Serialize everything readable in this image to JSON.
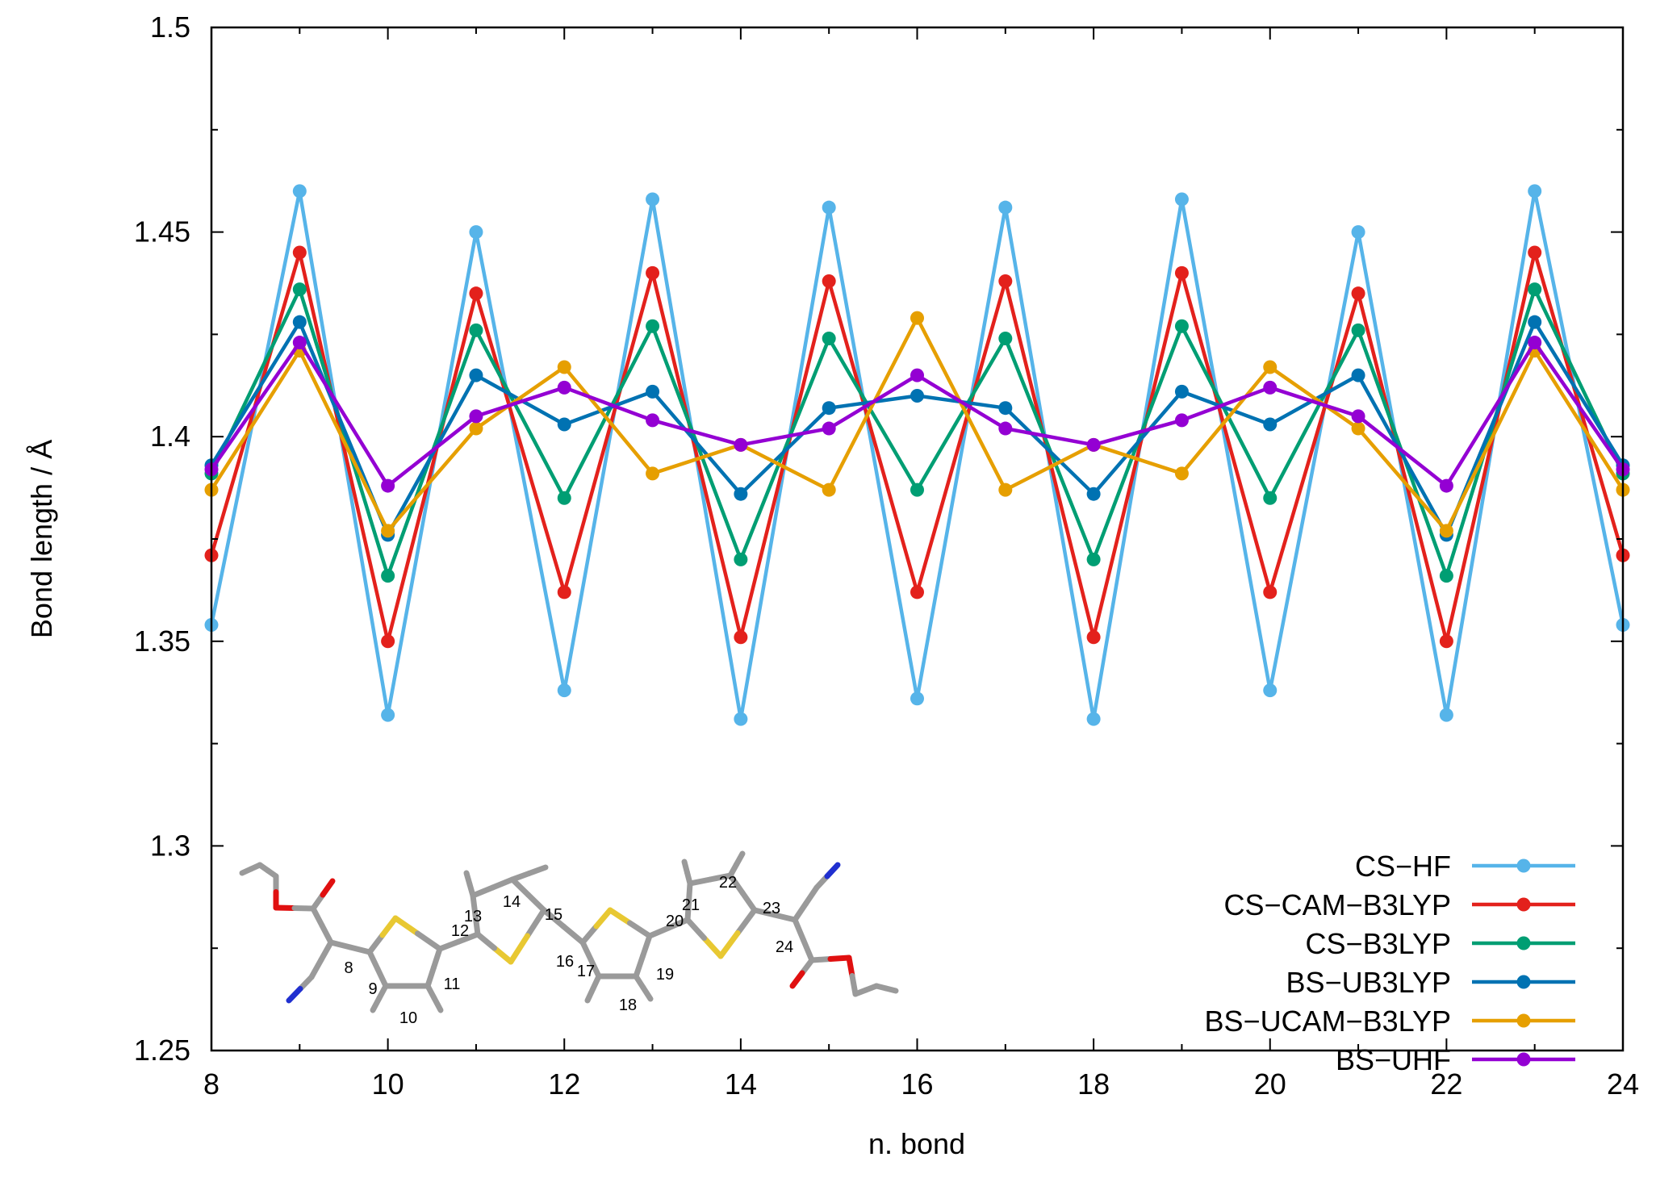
{
  "chart_data": {
    "type": "line",
    "title": "",
    "xlabel": "n. bond",
    "ylabel": "Bond length / Å",
    "xlim": [
      8,
      24
    ],
    "ylim": [
      1.25,
      1.5
    ],
    "xticks": [
      8,
      10,
      12,
      14,
      16,
      18,
      20,
      22,
      24
    ],
    "xtick_labels": [
      "8",
      "10",
      "12",
      "14",
      "16",
      "18",
      "20",
      "22",
      "24"
    ],
    "yticks": [
      1.25,
      1.3,
      1.35,
      1.4,
      1.45,
      1.5
    ],
    "ytick_labels": [
      "1.25",
      "1.3",
      "1.35",
      "1.4",
      "1.45",
      "1.5"
    ],
    "grid": false,
    "legend_position": "bottom-right",
    "x": [
      8,
      9,
      10,
      11,
      12,
      13,
      14,
      15,
      16,
      17,
      18,
      19,
      20,
      21,
      22,
      23,
      24
    ],
    "series": [
      {
        "name": "CS−HF",
        "color": "#56b4e9",
        "values": [
          1.354,
          1.46,
          1.332,
          1.45,
          1.338,
          1.458,
          1.331,
          1.456,
          1.336,
          1.456,
          1.331,
          1.458,
          1.338,
          1.45,
          1.332,
          1.46,
          1.354
        ]
      },
      {
        "name": "CS−CAM−B3LYP",
        "color": "#e3211c",
        "values": [
          1.371,
          1.445,
          1.35,
          1.435,
          1.362,
          1.44,
          1.351,
          1.438,
          1.362,
          1.438,
          1.351,
          1.44,
          1.362,
          1.435,
          1.35,
          1.445,
          1.371
        ]
      },
      {
        "name": "CS−B3LYP",
        "color": "#009e73",
        "values": [
          1.391,
          1.436,
          1.366,
          1.426,
          1.385,
          1.427,
          1.37,
          1.424,
          1.387,
          1.424,
          1.37,
          1.427,
          1.385,
          1.426,
          1.366,
          1.436,
          1.391
        ]
      },
      {
        "name": "BS−UB3LYP",
        "color": "#0072b2",
        "values": [
          1.393,
          1.428,
          1.376,
          1.415,
          1.403,
          1.411,
          1.386,
          1.407,
          1.41,
          1.407,
          1.386,
          1.411,
          1.403,
          1.415,
          1.376,
          1.428,
          1.393
        ]
      },
      {
        "name": "BS−UCAM−B3LYP",
        "color": "#e69f00",
        "values": [
          1.387,
          1.421,
          1.377,
          1.402,
          1.417,
          1.391,
          1.398,
          1.387,
          1.429,
          1.387,
          1.398,
          1.391,
          1.417,
          1.402,
          1.377,
          1.421,
          1.387
        ]
      },
      {
        "name": "BS−UHF",
        "color": "#9400d3",
        "values": [
          1.392,
          1.423,
          1.388,
          1.405,
          1.412,
          1.404,
          1.398,
          1.402,
          1.415,
          1.402,
          1.398,
          1.404,
          1.412,
          1.405,
          1.388,
          1.423,
          1.392
        ]
      }
    ]
  },
  "inset": {
    "atom_labels": [
      "8",
      "9",
      "10",
      "11",
      "12",
      "13",
      "14",
      "15",
      "16",
      "17",
      "18",
      "19",
      "20",
      "21",
      "22",
      "23",
      "24"
    ],
    "colors": {
      "carbon": "#9a9a9a",
      "sulfur": "#e8c832",
      "oxygen": "#e01010",
      "nitrogen": "#2030d0"
    }
  }
}
